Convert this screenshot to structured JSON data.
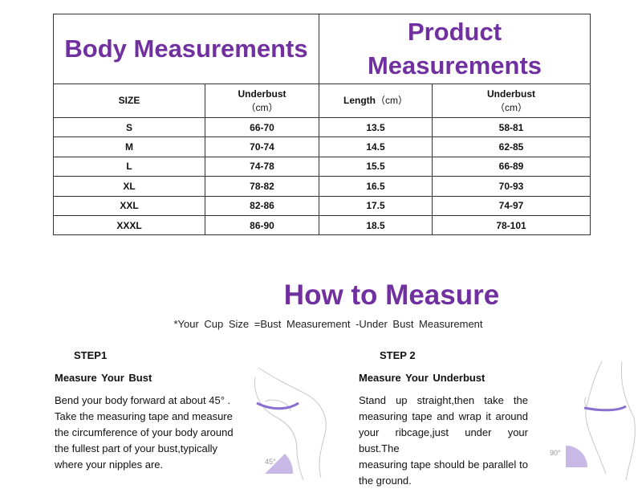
{
  "size_table": {
    "header": {
      "left": "Body Measurements",
      "right": "Product Measurements"
    },
    "columns": [
      {
        "label": "SIZE"
      },
      {
        "label": "Underbust",
        "unit": "（cm）"
      },
      {
        "label": "Length",
        "unit": "（cm）"
      },
      {
        "label": "Underbust",
        "unit": "（cm）"
      }
    ],
    "rows": [
      [
        "S",
        "66-70",
        "13.5",
        "58-81"
      ],
      [
        "M",
        "70-74",
        "14.5",
        "62-85"
      ],
      [
        "L",
        "74-78",
        "15.5",
        "66-89"
      ],
      [
        "XL",
        "78-82",
        "16.5",
        "70-93"
      ],
      [
        "XXL",
        "82-86",
        "17.5",
        "74-97"
      ],
      [
        "XXXL",
        "86-90",
        "18.5",
        "78-101"
      ]
    ]
  },
  "how_to_measure": {
    "title": "How to Measure",
    "note": "*Your Cup Size =Bust Measurement -Under Bust Measurement",
    "steps": [
      {
        "label": "STEP1",
        "heading": "Measure Your Bust",
        "angle": "45°",
        "lines": [
          "Bend your body forward at about 45° .",
          "Take the measuring tape and measure",
          "the circumference of your body around",
          "the fullest part of your bust,typically",
          "where your nipples are."
        ]
      },
      {
        "label": "STEP 2",
        "heading": "Measure Your Underbust",
        "angle": "90°",
        "lines": [
          "Stand up straight,then take the",
          "measuring tape and wrap it around",
          "your ribcage,just under your bust.The",
          "measuring tape should be parallel to",
          "the ground."
        ]
      }
    ]
  }
}
